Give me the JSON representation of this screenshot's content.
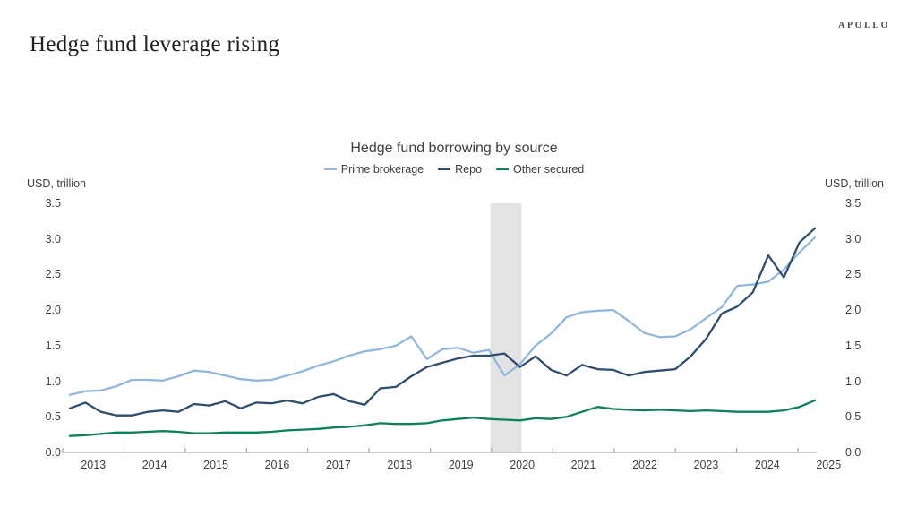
{
  "page": {
    "title": "Hedge fund leverage rising",
    "brand": "APOLLO"
  },
  "chart": {
    "title": "Hedge fund borrowing by source",
    "y_axis": {
      "unit": "USD, trillion",
      "ticks": [
        "3.5",
        "3.0",
        "2.5",
        "2.0",
        "1.5",
        "1.0",
        "0.5",
        "0.0"
      ]
    },
    "x_axis": {
      "years": [
        "2013",
        "2014",
        "2015",
        "2016",
        "2017",
        "2018",
        "2019",
        "2020",
        "2021",
        "2022",
        "2023",
        "2024",
        "2025"
      ]
    },
    "colors": {
      "axis": "#a6a6a6",
      "text": "#3f3f3f",
      "recession_band": "#e3e3e3"
    }
  },
  "chart_data": {
    "type": "line",
    "title": "Hedge fund borrowing by source",
    "ylabel": "USD, trillion",
    "ylim": [
      0,
      3.5
    ],
    "grid": false,
    "legend_position": "top",
    "x": [
      "2013Q1",
      "2013Q2",
      "2013Q3",
      "2013Q4",
      "2014Q1",
      "2014Q2",
      "2014Q3",
      "2014Q4",
      "2015Q1",
      "2015Q2",
      "2015Q3",
      "2015Q4",
      "2016Q1",
      "2016Q2",
      "2016Q3",
      "2016Q4",
      "2017Q1",
      "2017Q2",
      "2017Q3",
      "2017Q4",
      "2018Q1",
      "2018Q2",
      "2018Q3",
      "2018Q4",
      "2019Q1",
      "2019Q2",
      "2019Q3",
      "2019Q4",
      "2020Q1",
      "2020Q2",
      "2020Q3",
      "2020Q4",
      "2021Q1",
      "2021Q2",
      "2021Q3",
      "2021Q4",
      "2022Q1",
      "2022Q2",
      "2022Q3",
      "2022Q4",
      "2023Q1",
      "2023Q2",
      "2023Q3",
      "2023Q4",
      "2024Q1",
      "2024Q2",
      "2024Q3",
      "2024Q4",
      "2025Q1"
    ],
    "series": [
      {
        "name": "Prime brokerage",
        "color": "#92b7dd",
        "values": [
          0.81,
          0.86,
          0.87,
          0.93,
          1.02,
          1.02,
          1.01,
          1.07,
          1.15,
          1.13,
          1.08,
          1.03,
          1.01,
          1.02,
          1.08,
          1.14,
          1.22,
          1.28,
          1.36,
          1.42,
          1.45,
          1.5,
          1.63,
          1.31,
          1.45,
          1.47,
          1.4,
          1.44,
          1.08,
          1.24,
          1.5,
          1.67,
          1.9,
          1.97,
          1.99,
          2.0,
          1.85,
          1.68,
          1.62,
          1.63,
          1.73,
          1.89,
          2.04,
          2.34,
          2.36,
          2.4,
          2.57,
          2.81,
          3.02
        ]
      },
      {
        "name": "Repo",
        "color": "#2f4d6d",
        "values": [
          0.62,
          0.7,
          0.57,
          0.52,
          0.52,
          0.57,
          0.59,
          0.57,
          0.68,
          0.66,
          0.72,
          0.62,
          0.7,
          0.69,
          0.73,
          0.69,
          0.78,
          0.82,
          0.72,
          0.67,
          0.9,
          0.92,
          1.07,
          1.2,
          1.26,
          1.32,
          1.36,
          1.36,
          1.39,
          1.2,
          1.35,
          1.16,
          1.08,
          1.23,
          1.17,
          1.16,
          1.08,
          1.13,
          1.15,
          1.17,
          1.35,
          1.6,
          1.95,
          2.05,
          2.25,
          2.77,
          2.46,
          2.95,
          3.15
        ]
      },
      {
        "name": "Other secured",
        "color": "#0e7f5f",
        "values": [
          0.23,
          0.24,
          0.26,
          0.28,
          0.28,
          0.29,
          0.3,
          0.29,
          0.27,
          0.27,
          0.28,
          0.28,
          0.28,
          0.29,
          0.31,
          0.32,
          0.33,
          0.35,
          0.36,
          0.38,
          0.41,
          0.4,
          0.4,
          0.41,
          0.45,
          0.47,
          0.49,
          0.47,
          0.46,
          0.45,
          0.48,
          0.47,
          0.5,
          0.57,
          0.64,
          0.61,
          0.6,
          0.59,
          0.6,
          0.59,
          0.58,
          0.59,
          0.58,
          0.57,
          0.57,
          0.57,
          0.59,
          0.64,
          0.73
        ]
      }
    ],
    "shaded_region": {
      "x_start": "2020Q1",
      "x_end": "2020Q2",
      "color": "#e3e3e3",
      "meaning": "recession-shading"
    }
  }
}
